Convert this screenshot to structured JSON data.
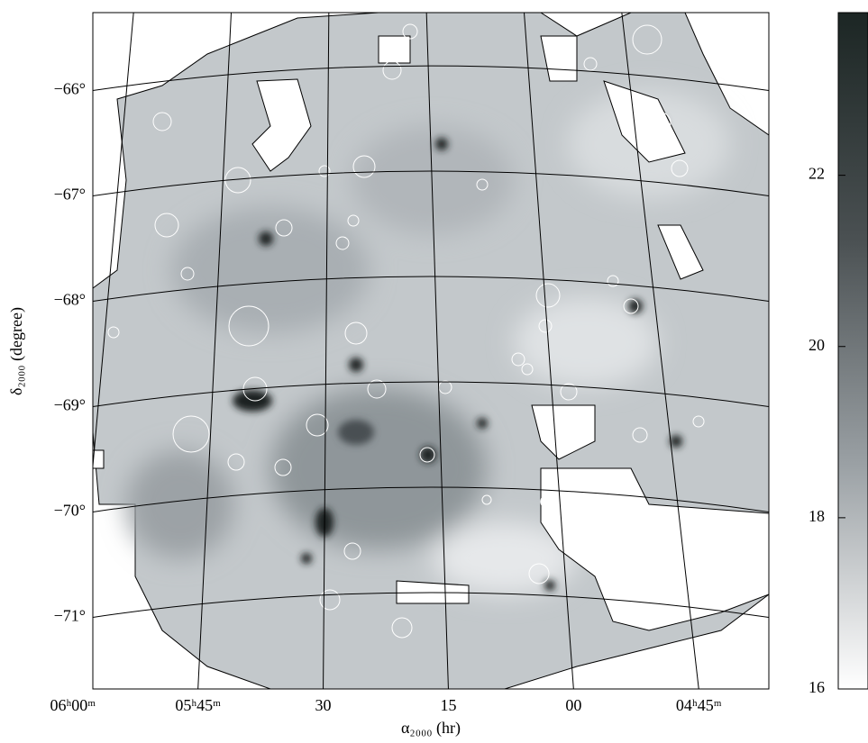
{
  "chart_data": {
    "type": "image",
    "xlabel": "α₂₀₀₀ (hr)",
    "ylabel": "δ₂₀₀₀ (degree)",
    "xlim": [
      5.96,
      4.61
    ],
    "ylim": [
      -71.68,
      -65.26
    ],
    "xticks": [
      {
        "value": 6.0,
        "label": "06ʰ00ᵐ"
      },
      {
        "value": 5.75,
        "label": "05ʰ45ᵐ"
      },
      {
        "value": 5.5,
        "label": "30"
      },
      {
        "value": 5.25,
        "label": "15"
      },
      {
        "value": 5.0,
        "label": "00"
      },
      {
        "value": 4.75,
        "label": "04ʰ45ᵐ"
      }
    ],
    "yticks": [
      {
        "value": -66,
        "label": "−66°"
      },
      {
        "value": -67,
        "label": "−67°"
      },
      {
        "value": -68,
        "label": "−68°"
      },
      {
        "value": -69,
        "label": "−69°"
      },
      {
        "value": -70,
        "label": "−70°"
      },
      {
        "value": -71,
        "label": "−71°"
      }
    ],
    "grid": true,
    "colorbar": {
      "clim": [
        16,
        23.9
      ],
      "ticks": [
        16,
        18,
        20,
        22
      ],
      "colors": [
        "#ffffff",
        "#9aa0a4",
        "#4a5052",
        "#1c2624"
      ]
    }
  }
}
